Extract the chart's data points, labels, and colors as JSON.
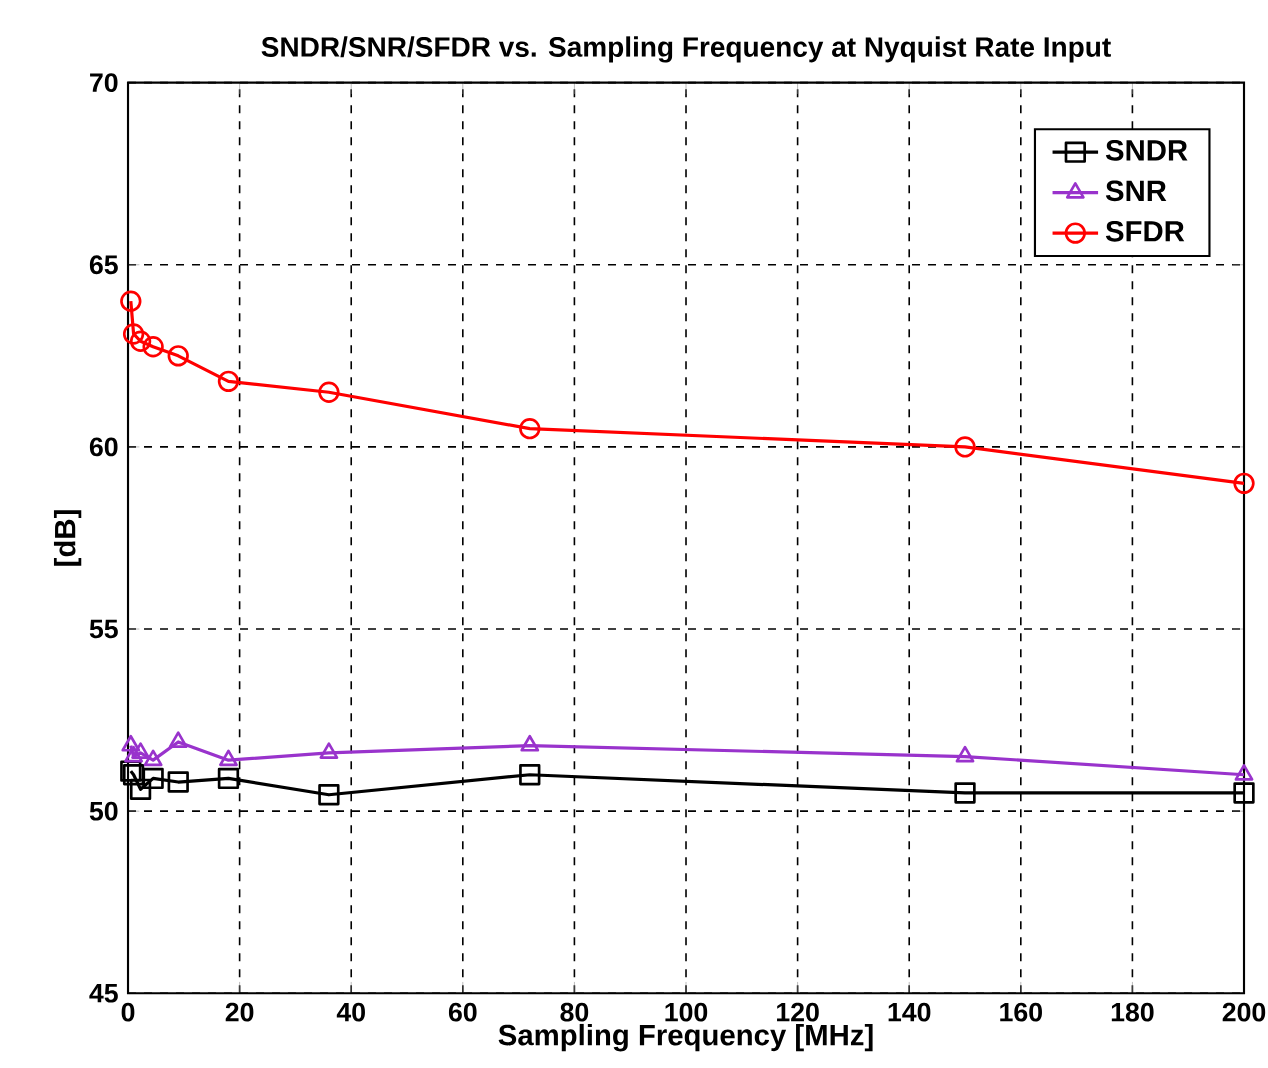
{
  "chart_data": {
    "type": "line",
    "title": "SNDR/SNR/SFDR vs. Sampling Frequency at Nyquist Rate Input",
    "xlabel": "Sampling Frequency [MHz]",
    "ylabel": "[dB]",
    "x": [
      0.5,
      1,
      2.25,
      4.5,
      9,
      18,
      36,
      72,
      150,
      200
    ],
    "series": [
      {
        "name": "SNDR",
        "color": "#000000",
        "marker": "square",
        "values": [
          51.1,
          51.0,
          50.6,
          50.9,
          50.8,
          50.9,
          50.45,
          51.0,
          50.5,
          50.5
        ]
      },
      {
        "name": "SNR",
        "color": "#9933cc",
        "marker": "triangle",
        "values": [
          51.8,
          51.5,
          51.6,
          51.4,
          51.9,
          51.4,
          51.6,
          51.8,
          51.5,
          51.0
        ]
      },
      {
        "name": "SFDR",
        "color": "#ff0000",
        "marker": "circle",
        "values": [
          64.0,
          63.1,
          62.9,
          62.75,
          62.5,
          61.8,
          61.5,
          60.5,
          60.0,
          59.0
        ]
      }
    ],
    "xlim": [
      0,
      200
    ],
    "xticks": [
      0,
      20,
      40,
      60,
      80,
      100,
      120,
      140,
      160,
      180,
      200
    ],
    "ylim": [
      45,
      70
    ],
    "yticks": [
      45,
      50,
      55,
      60,
      65,
      70
    ],
    "grid": true,
    "legend": "top right",
    "line_style": "solid"
  }
}
